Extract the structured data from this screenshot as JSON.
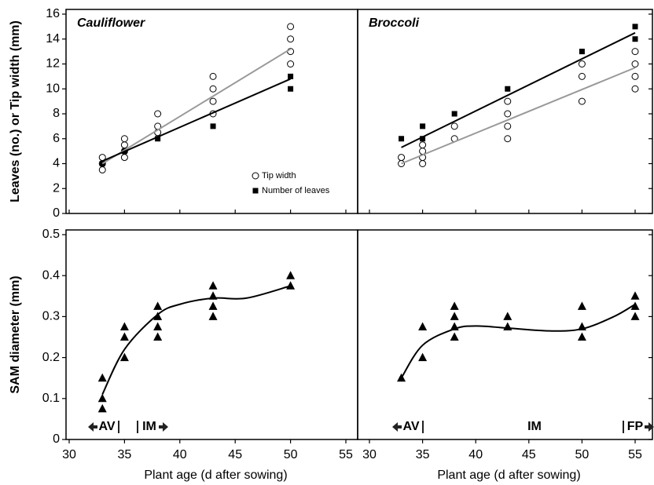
{
  "chart_data": [
    {
      "type": "scatter",
      "title": "Cauliflower",
      "ylabel": "Leaves (no.) or Tip width (mm)",
      "xlim": [
        30,
        55
      ],
      "xticks": [
        30,
        35,
        40,
        45,
        50,
        55
      ],
      "ylim": [
        0,
        16
      ],
      "yticks": [
        0,
        2,
        4,
        6,
        8,
        10,
        12,
        14,
        16
      ],
      "legend": "lower right",
      "series": [
        {
          "name": "Tip width",
          "kind": "points",
          "marker": "circle",
          "color": "#000",
          "x": [
            33,
            33,
            33,
            35,
            35,
            35,
            35,
            38,
            38,
            38,
            43,
            43,
            43,
            43,
            50,
            50,
            50,
            50
          ],
          "values": [
            3.5,
            4,
            4.5,
            4.5,
            5,
            5.5,
            6,
            6.5,
            7,
            8,
            8,
            9,
            10,
            11,
            12,
            13,
            14,
            15
          ]
        },
        {
          "name": "Number of leaves",
          "kind": "points",
          "marker": "square",
          "color": "#000",
          "x": [
            33,
            35,
            38,
            43,
            50,
            50
          ],
          "values": [
            4,
            5,
            6,
            7,
            10,
            11
          ]
        },
        {
          "kind": "line",
          "color": "#999",
          "x": [
            33,
            50
          ],
          "values": [
            4,
            13.2
          ]
        },
        {
          "kind": "line",
          "color": "#000",
          "x": [
            33,
            50
          ],
          "values": [
            4.2,
            10.8
          ]
        }
      ]
    },
    {
      "type": "scatter",
      "title": "Broccoli",
      "xlim": [
        30,
        55
      ],
      "xticks": [
        30,
        35,
        40,
        45,
        50,
        55
      ],
      "ylim": [
        0,
        16
      ],
      "yticks": [
        0,
        2,
        4,
        6,
        8,
        10,
        12,
        14,
        16
      ],
      "series": [
        {
          "kind": "points",
          "marker": "circle",
          "color": "#000",
          "x": [
            33,
            33,
            35,
            35,
            35,
            35,
            38,
            38,
            43,
            43,
            43,
            43,
            50,
            50,
            50,
            55,
            55,
            55,
            55
          ],
          "values": [
            4,
            4.5,
            4,
            4.5,
            5,
            5.5,
            6,
            7,
            6,
            7,
            8,
            9,
            9,
            11,
            12,
            10,
            11,
            12,
            13
          ]
        },
        {
          "kind": "points",
          "marker": "square",
          "color": "#000",
          "x": [
            33,
            35,
            35,
            38,
            43,
            50,
            55,
            55
          ],
          "values": [
            6,
            6,
            7,
            8,
            10,
            13,
            14,
            15
          ]
        },
        {
          "kind": "line",
          "color": "#000",
          "x": [
            33,
            55
          ],
          "values": [
            5.3,
            14.5
          ]
        },
        {
          "kind": "line",
          "color": "#999",
          "x": [
            33,
            55
          ],
          "values": [
            4,
            11.7
          ]
        }
      ]
    },
    {
      "type": "scatter",
      "ylabel": "SAM diameter (mm)",
      "xlabel": "Plant age (d after sowing)",
      "xlim": [
        30,
        55
      ],
      "xticks": [
        30,
        35,
        40,
        45,
        50,
        55
      ],
      "ylim": [
        0,
        0.5
      ],
      "yticks": [
        0,
        0.1,
        0.2,
        0.3,
        0.4,
        0.5
      ],
      "annotations": [
        "AV",
        "IM"
      ],
      "series": [
        {
          "kind": "points",
          "marker": "triangle",
          "color": "#000",
          "x": [
            33,
            33,
            33,
            35,
            35,
            35,
            38,
            38,
            38,
            38,
            43,
            43,
            43,
            43,
            50,
            50
          ],
          "values": [
            0.075,
            0.1,
            0.15,
            0.2,
            0.25,
            0.275,
            0.25,
            0.275,
            0.3,
            0.325,
            0.3,
            0.325,
            0.35,
            0.375,
            0.375,
            0.4
          ]
        },
        {
          "kind": "line",
          "color": "#000",
          "x": [
            33,
            35,
            38,
            40,
            43,
            46,
            50
          ],
          "values": [
            0.11,
            0.22,
            0.305,
            0.33,
            0.345,
            0.345,
            0.375
          ]
        }
      ]
    },
    {
      "type": "scatter",
      "xlabel": "Plant age (d after sowing)",
      "xlim": [
        30,
        55
      ],
      "xticks": [
        30,
        35,
        40,
        45,
        50,
        55
      ],
      "ylim": [
        0,
        0.5
      ],
      "yticks": [
        0,
        0.1,
        0.2,
        0.3,
        0.4,
        0.5
      ],
      "annotations": [
        "AV",
        "IM",
        "FP"
      ],
      "series": [
        {
          "kind": "points",
          "marker": "triangle",
          "color": "#000",
          "x": [
            33,
            35,
            35,
            38,
            38,
            38,
            38,
            43,
            43,
            50,
            50,
            50,
            55,
            55,
            55
          ],
          "values": [
            0.15,
            0.2,
            0.275,
            0.25,
            0.275,
            0.3,
            0.325,
            0.275,
            0.3,
            0.25,
            0.275,
            0.325,
            0.3,
            0.325,
            0.35
          ]
        },
        {
          "kind": "line",
          "color": "#000",
          "x": [
            33,
            35,
            38,
            40,
            43,
            47,
            50,
            53,
            55
          ],
          "values": [
            0.15,
            0.23,
            0.27,
            0.277,
            0.272,
            0.265,
            0.27,
            0.3,
            0.33
          ]
        }
      ]
    }
  ]
}
